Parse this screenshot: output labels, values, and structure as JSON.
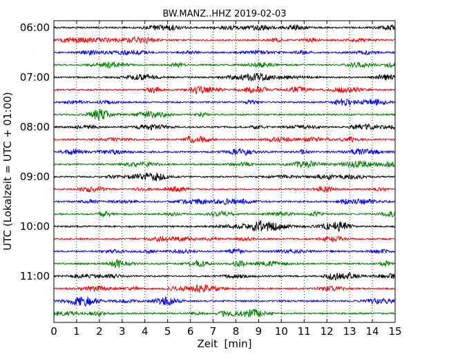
{
  "chart_data": {
    "type": "line",
    "title": "BW.MANZ..HHZ 2019-02-03",
    "xlabel": "Zeit  [min]",
    "ylabel": "UTC (Lokalzeit = UTC + 01:00)",
    "xlim": [
      0,
      15
    ],
    "x_ticks": [
      "0",
      "1",
      "2",
      "3",
      "4",
      "5",
      "6",
      "7",
      "8",
      "9",
      "10",
      "11",
      "12",
      "13",
      "14",
      "15"
    ],
    "y_tick_labels": [
      "06:00",
      "07:00",
      "08:00",
      "09:00",
      "10:00",
      "11:00"
    ],
    "grid": "vertical dotted lines at each minute",
    "trace_interval_minutes": 15,
    "color_cycle": [
      "#000000",
      "#ff0000",
      "#0000ff",
      "#008000"
    ],
    "series": [
      {
        "start": "06:00",
        "color": "#000000"
      },
      {
        "start": "06:15",
        "color": "#ff0000"
      },
      {
        "start": "06:30",
        "color": "#0000ff"
      },
      {
        "start": "06:45",
        "color": "#008000"
      },
      {
        "start": "07:00",
        "color": "#000000"
      },
      {
        "start": "07:15",
        "color": "#ff0000"
      },
      {
        "start": "07:30",
        "color": "#0000ff"
      },
      {
        "start": "07:45",
        "color": "#008000"
      },
      {
        "start": "08:00",
        "color": "#000000"
      },
      {
        "start": "08:15",
        "color": "#ff0000"
      },
      {
        "start": "08:30",
        "color": "#0000ff"
      },
      {
        "start": "08:45",
        "color": "#008000"
      },
      {
        "start": "09:00",
        "color": "#000000"
      },
      {
        "start": "09:15",
        "color": "#ff0000"
      },
      {
        "start": "09:30",
        "color": "#0000ff"
      },
      {
        "start": "09:45",
        "color": "#008000"
      },
      {
        "start": "10:00",
        "color": "#000000"
      },
      {
        "start": "10:15",
        "color": "#ff0000"
      },
      {
        "start": "10:30",
        "color": "#0000ff"
      },
      {
        "start": "10:45",
        "color": "#008000"
      },
      {
        "start": "11:00",
        "color": "#000000"
      },
      {
        "start": "11:15",
        "color": "#ff0000"
      },
      {
        "start": "11:30",
        "color": "#0000ff"
      },
      {
        "start": "11:45",
        "color": "#008000"
      }
    ]
  }
}
